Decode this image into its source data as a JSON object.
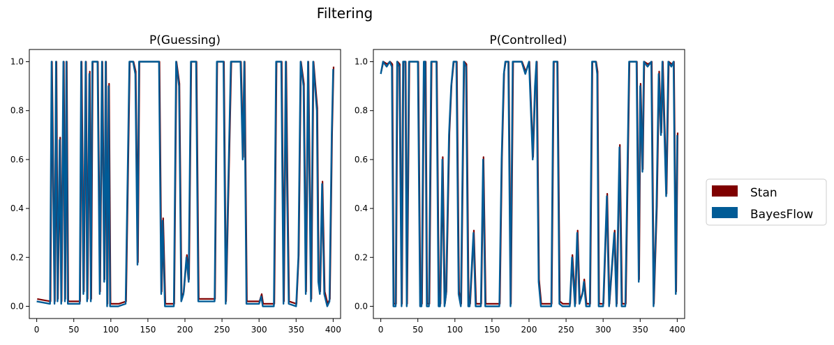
{
  "figure_title": "Filtering",
  "legend": {
    "placement": "right-center",
    "entries": [
      {
        "label": "Stan",
        "color": "#7f0000"
      },
      {
        "label": "BayesFlow",
        "color": "#005b96"
      }
    ]
  },
  "chart_data": [
    {
      "type": "line",
      "title": "P(Guessing)",
      "xlim": [
        -10,
        410
      ],
      "ylim": [
        -0.05,
        1.05
      ],
      "xticks": [
        0,
        50,
        100,
        150,
        200,
        250,
        300,
        350,
        400
      ],
      "yticks": [
        0.0,
        0.2,
        0.4,
        0.6,
        0.8,
        1.0
      ],
      "grid": false,
      "segments": [
        [
          0,
          0.02
        ],
        [
          18,
          0.01
        ],
        [
          20,
          1.0
        ],
        [
          24,
          0.01
        ],
        [
          26,
          1.0
        ],
        [
          28,
          0.02
        ],
        [
          31,
          0.68
        ],
        [
          33,
          0.01
        ],
        [
          36,
          1.0
        ],
        [
          38,
          0.02
        ],
        [
          40,
          1.0
        ],
        [
          42,
          0.01
        ],
        [
          58,
          0.01
        ],
        [
          60,
          1.0
        ],
        [
          63,
          0.05
        ],
        [
          66,
          1.0
        ],
        [
          68,
          0.02
        ],
        [
          71,
          0.95
        ],
        [
          73,
          0.02
        ],
        [
          75,
          1.0
        ],
        [
          82,
          1.0
        ],
        [
          85,
          0.05
        ],
        [
          88,
          1.0
        ],
        [
          91,
          0.1
        ],
        [
          93,
          1.0
        ],
        [
          95,
          0.0
        ],
        [
          97,
          0.9
        ],
        [
          99,
          0.0
        ],
        [
          105,
          0.0
        ],
        [
          110,
          0.0
        ],
        [
          120,
          0.01
        ],
        [
          125,
          1.0
        ],
        [
          130,
          1.0
        ],
        [
          133,
          0.95
        ],
        [
          136,
          0.17
        ],
        [
          138,
          1.0
        ],
        [
          165,
          1.0
        ],
        [
          168,
          0.05
        ],
        [
          170,
          0.35
        ],
        [
          173,
          0.0
        ],
        [
          185,
          0.0
        ],
        [
          188,
          1.0
        ],
        [
          192,
          0.9
        ],
        [
          195,
          0.02
        ],
        [
          198,
          0.05
        ],
        [
          202,
          0.2
        ],
        [
          205,
          0.1
        ],
        [
          208,
          1.0
        ],
        [
          215,
          1.0
        ],
        [
          218,
          0.02
        ],
        [
          240,
          0.02
        ],
        [
          243,
          1.0
        ],
        [
          252,
          1.0
        ],
        [
          255,
          0.01
        ],
        [
          262,
          1.0
        ],
        [
          275,
          1.0
        ],
        [
          278,
          0.6
        ],
        [
          280,
          1.0
        ],
        [
          283,
          0.01
        ],
        [
          300,
          0.01
        ],
        [
          303,
          0.04
        ],
        [
          305,
          0.0
        ],
        [
          320,
          0.0
        ],
        [
          323,
          1.0
        ],
        [
          330,
          1.0
        ],
        [
          333,
          0.01
        ],
        [
          336,
          1.0
        ],
        [
          338,
          0.45
        ],
        [
          340,
          0.01
        ],
        [
          350,
          0.0
        ],
        [
          353,
          0.2
        ],
        [
          356,
          1.0
        ],
        [
          360,
          0.9
        ],
        [
          363,
          0.05
        ],
        [
          366,
          1.0
        ],
        [
          370,
          0.02
        ],
        [
          373,
          1.0
        ],
        [
          378,
          0.8
        ],
        [
          380,
          0.1
        ],
        [
          382,
          0.05
        ],
        [
          385,
          0.5
        ],
        [
          388,
          0.05
        ],
        [
          392,
          0.0
        ],
        [
          395,
          0.02
        ],
        [
          398,
          0.7
        ],
        [
          400,
          0.97
        ]
      ]
    },
    {
      "type": "line",
      "title": "P(Controlled)",
      "xlim": [
        -10,
        410
      ],
      "ylim": [
        -0.05,
        1.05
      ],
      "xticks": [
        0,
        50,
        100,
        150,
        200,
        250,
        300,
        350,
        400
      ],
      "yticks": [
        0.0,
        0.2,
        0.4,
        0.6,
        0.8,
        1.0
      ],
      "grid": false,
      "segments": [
        [
          0,
          0.95
        ],
        [
          3,
          1.0
        ],
        [
          8,
          0.98
        ],
        [
          12,
          1.0
        ],
        [
          15,
          0.98
        ],
        [
          17,
          0.0
        ],
        [
          20,
          0.0
        ],
        [
          22,
          1.0
        ],
        [
          25,
          0.98
        ],
        [
          28,
          0.0
        ],
        [
          30,
          1.0
        ],
        [
          33,
          1.0
        ],
        [
          35,
          0.0
        ],
        [
          38,
          1.0
        ],
        [
          50,
          1.0
        ],
        [
          53,
          0.0
        ],
        [
          55,
          0.0
        ],
        [
          58,
          1.0
        ],
        [
          60,
          1.0
        ],
        [
          62,
          0.0
        ],
        [
          65,
          0.0
        ],
        [
          68,
          1.0
        ],
        [
          75,
          1.0
        ],
        [
          78,
          0.0
        ],
        [
          80,
          0.0
        ],
        [
          83,
          0.6
        ],
        [
          86,
          0.0
        ],
        [
          88,
          0.05
        ],
        [
          92,
          0.7
        ],
        [
          95,
          0.9
        ],
        [
          98,
          1.0
        ],
        [
          102,
          1.0
        ],
        [
          105,
          0.05
        ],
        [
          108,
          0.0
        ],
        [
          112,
          1.0
        ],
        [
          115,
          0.98
        ],
        [
          118,
          0.0
        ],
        [
          120,
          0.0
        ],
        [
          125,
          0.3
        ],
        [
          128,
          0.0
        ],
        [
          135,
          0.0
        ],
        [
          138,
          0.6
        ],
        [
          141,
          0.0
        ],
        [
          145,
          0.0
        ],
        [
          150,
          0.0
        ],
        [
          160,
          0.0
        ],
        [
          163,
          0.6
        ],
        [
          166,
          0.95
        ],
        [
          168,
          1.0
        ],
        [
          172,
          1.0
        ],
        [
          175,
          0.0
        ],
        [
          178,
          1.0
        ],
        [
          190,
          1.0
        ],
        [
          195,
          0.95
        ],
        [
          200,
          1.0
        ],
        [
          205,
          0.6
        ],
        [
          208,
          0.9
        ],
        [
          210,
          1.0
        ],
        [
          213,
          0.1
        ],
        [
          216,
          0.0
        ],
        [
          230,
          0.0
        ],
        [
          233,
          1.0
        ],
        [
          238,
          1.0
        ],
        [
          241,
          0.01
        ],
        [
          245,
          0.0
        ],
        [
          255,
          0.0
        ],
        [
          258,
          0.2
        ],
        [
          262,
          0.0
        ],
        [
          265,
          0.3
        ],
        [
          268,
          0.01
        ],
        [
          272,
          0.05
        ],
        [
          274,
          0.1
        ],
        [
          277,
          0.0
        ],
        [
          282,
          0.0
        ],
        [
          285,
          1.0
        ],
        [
          290,
          1.0
        ],
        [
          292,
          0.95
        ],
        [
          294,
          0.0
        ],
        [
          300,
          0.0
        ],
        [
          305,
          0.45
        ],
        [
          308,
          0.0
        ],
        [
          315,
          0.3
        ],
        [
          318,
          0.0
        ],
        [
          322,
          0.65
        ],
        [
          325,
          0.0
        ],
        [
          330,
          0.0
        ],
        [
          335,
          1.0
        ],
        [
          345,
          1.0
        ],
        [
          348,
          0.1
        ],
        [
          350,
          0.9
        ],
        [
          353,
          0.55
        ],
        [
          355,
          1.0
        ],
        [
          360,
          0.98
        ],
        [
          365,
          1.0
        ],
        [
          368,
          0.0
        ],
        [
          372,
          0.4
        ],
        [
          375,
          0.95
        ],
        [
          378,
          0.7
        ],
        [
          380,
          1.0
        ],
        [
          385,
          0.45
        ],
        [
          388,
          1.0
        ],
        [
          392,
          0.98
        ],
        [
          395,
          1.0
        ],
        [
          398,
          0.05
        ],
        [
          400,
          0.7
        ]
      ]
    }
  ]
}
